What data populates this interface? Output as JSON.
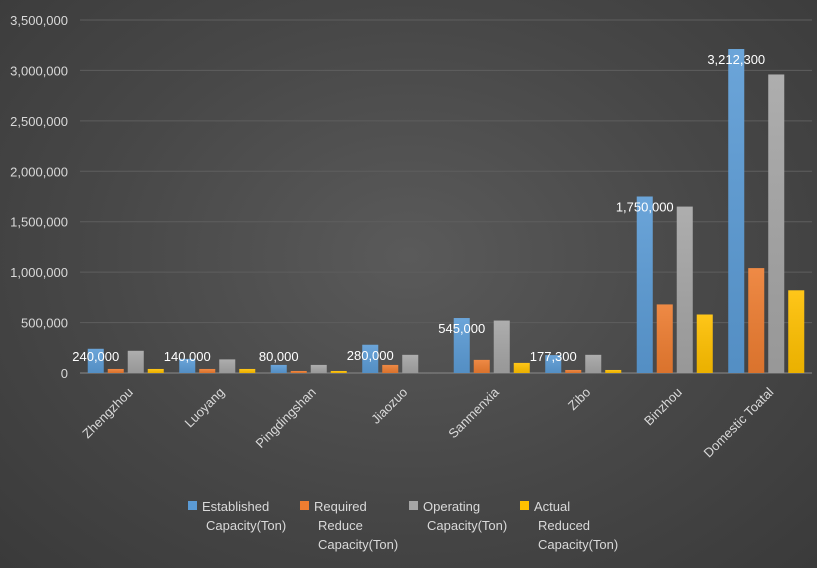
{
  "chart_data": {
    "type": "bar",
    "categories": [
      "Zhengzhou",
      "Luoyang",
      "Pingdingshan",
      "Jiaozuo",
      "Sanmenxia",
      "Zibo",
      "Binzhou",
      "Domestic Toatal"
    ],
    "ylim": [
      0,
      3500000
    ],
    "yticks": [
      "0",
      "500,000",
      "1,000,000",
      "1,500,000",
      "2,000,000",
      "2,500,000",
      "3,000,000",
      "3,500,000"
    ],
    "grid": true,
    "legend_position": "bottom",
    "series": [
      {
        "name": "Established Capacity(Ton)",
        "legend_lines": [
          "Established",
          "Capacity(Ton)"
        ],
        "color": "#5b9bd5",
        "values": [
          240000,
          140000,
          80000,
          280000,
          545000,
          177300,
          1750000,
          3212300
        ],
        "data_labels": [
          "240,000",
          "140,000",
          "80,000",
          "280,000",
          "545,000",
          "177,300",
          "1,750,000",
          "3,212,300"
        ]
      },
      {
        "name": "Required Reduce Capacity(Ton)",
        "legend_lines": [
          "Required",
          "Reduce",
          "Capacity(Ton)"
        ],
        "color": "#ed7d31",
        "values": [
          40000,
          40000,
          20000,
          80000,
          130000,
          30000,
          680000,
          1040000
        ]
      },
      {
        "name": "Operating Capacity(Ton)",
        "legend_lines": [
          "Operating",
          "Capacity(Ton)"
        ],
        "color": "#a5a5a5",
        "values": [
          220000,
          135000,
          80000,
          180000,
          520000,
          180000,
          1650000,
          2960000
        ]
      },
      {
        "name": "Actual Reduced Capacity(Ton)",
        "legend_lines": [
          "Actual",
          "Reduced",
          "Capacity(Ton)"
        ],
        "color": "#ffc000",
        "values": [
          40000,
          40000,
          20000,
          0,
          100000,
          30000,
          580000,
          820000
        ]
      }
    ]
  }
}
